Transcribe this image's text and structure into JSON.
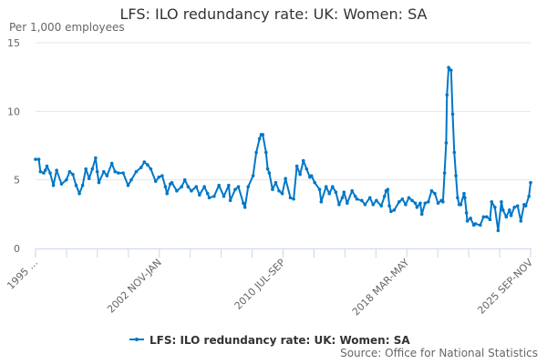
{
  "chart_data": {
    "type": "line",
    "title": "LFS: ILO redundancy rate: UK: Women: SA",
    "ylabel": "Per 1,000 employees",
    "source": "Source: Office for National Statistics",
    "ylim": [
      0,
      15
    ],
    "yticks": [
      0,
      5,
      10,
      15
    ],
    "xlim": [
      1995.3,
      2025.8
    ],
    "xtick_labels": [
      "1995 ...",
      "2002 NOV-JAN",
      "2010 JUL-SEP",
      "2018 MAR-MAY",
      "2025 SEP-NOV"
    ],
    "grid": true,
    "legend_position": "bottom",
    "color": "#0077c8",
    "series": [
      {
        "name": "LFS: ILO redundancy rate: UK: Women: SA",
        "points": [
          [
            1995.3,
            6.5
          ],
          [
            1995.5,
            6.5
          ],
          [
            1995.6,
            5.6
          ],
          [
            1995.8,
            5.5
          ],
          [
            1995.9,
            5.7
          ],
          [
            1996.0,
            6.0
          ],
          [
            1996.2,
            5.5
          ],
          [
            1996.4,
            4.6
          ],
          [
            1996.6,
            5.7
          ],
          [
            1996.9,
            4.7
          ],
          [
            1997.2,
            5.0
          ],
          [
            1997.4,
            5.6
          ],
          [
            1997.6,
            5.4
          ],
          [
            1997.8,
            4.6
          ],
          [
            1998.0,
            4.0
          ],
          [
            1998.2,
            4.6
          ],
          [
            1998.4,
            5.8
          ],
          [
            1998.6,
            5.1
          ],
          [
            1998.8,
            5.8
          ],
          [
            1999.0,
            6.6
          ],
          [
            1999.1,
            5.6
          ],
          [
            1999.2,
            4.8
          ],
          [
            1999.5,
            5.6
          ],
          [
            1999.7,
            5.3
          ],
          [
            2000.0,
            6.2
          ],
          [
            2000.2,
            5.6
          ],
          [
            2000.4,
            5.5
          ],
          [
            2000.7,
            5.5
          ],
          [
            2001.0,
            4.6
          ],
          [
            2001.2,
            5.0
          ],
          [
            2001.5,
            5.6
          ],
          [
            2001.8,
            5.9
          ],
          [
            2002.0,
            6.3
          ],
          [
            2002.2,
            6.1
          ],
          [
            2002.4,
            5.8
          ],
          [
            2002.7,
            4.9
          ],
          [
            2002.9,
            5.2
          ],
          [
            2003.1,
            5.3
          ],
          [
            2003.3,
            4.5
          ],
          [
            2003.4,
            4.0
          ],
          [
            2003.6,
            4.7
          ],
          [
            2003.7,
            4.8
          ],
          [
            2004.0,
            4.2
          ],
          [
            2004.3,
            4.5
          ],
          [
            2004.5,
            5.0
          ],
          [
            2004.7,
            4.5
          ],
          [
            2004.9,
            4.2
          ],
          [
            2005.2,
            4.5
          ],
          [
            2005.4,
            3.9
          ],
          [
            2005.7,
            4.5
          ],
          [
            2005.9,
            4.0
          ],
          [
            2006.0,
            3.7
          ],
          [
            2006.3,
            3.8
          ],
          [
            2006.6,
            4.6
          ],
          [
            2006.9,
            3.8
          ],
          [
            2007.2,
            4.6
          ],
          [
            2007.3,
            3.5
          ],
          [
            2007.6,
            4.3
          ],
          [
            2007.8,
            4.5
          ],
          [
            2008.1,
            3.3
          ],
          [
            2008.2,
            3.0
          ],
          [
            2008.4,
            4.5
          ],
          [
            2008.7,
            5.3
          ],
          [
            2008.9,
            7.0
          ],
          [
            2009.1,
            8.0
          ],
          [
            2009.2,
            8.3
          ],
          [
            2009.3,
            8.3
          ],
          [
            2009.5,
            7.0
          ],
          [
            2009.6,
            5.8
          ],
          [
            2009.7,
            5.5
          ],
          [
            2009.9,
            4.3
          ],
          [
            2010.1,
            4.8
          ],
          [
            2010.3,
            4.2
          ],
          [
            2010.5,
            4.0
          ],
          [
            2010.7,
            5.1
          ],
          [
            2011.0,
            3.7
          ],
          [
            2011.2,
            3.6
          ],
          [
            2011.4,
            6.0
          ],
          [
            2011.6,
            5.4
          ],
          [
            2011.8,
            6.4
          ],
          [
            2012.0,
            5.8
          ],
          [
            2012.2,
            5.2
          ],
          [
            2012.3,
            5.3
          ],
          [
            2012.5,
            4.8
          ],
          [
            2012.8,
            4.3
          ],
          [
            2012.9,
            3.4
          ],
          [
            2013.2,
            4.5
          ],
          [
            2013.4,
            4.0
          ],
          [
            2013.6,
            4.5
          ],
          [
            2013.8,
            4.1
          ],
          [
            2014.0,
            3.2
          ],
          [
            2014.2,
            3.7
          ],
          [
            2014.3,
            4.1
          ],
          [
            2014.5,
            3.3
          ],
          [
            2014.8,
            4.2
          ],
          [
            2015.0,
            3.8
          ],
          [
            2015.1,
            3.6
          ],
          [
            2015.4,
            3.5
          ],
          [
            2015.6,
            3.2
          ],
          [
            2015.9,
            3.7
          ],
          [
            2016.1,
            3.2
          ],
          [
            2016.3,
            3.5
          ],
          [
            2016.6,
            3.1
          ],
          [
            2016.8,
            3.8
          ],
          [
            2016.9,
            4.2
          ],
          [
            2017.0,
            4.3
          ],
          [
            2017.1,
            3.1
          ],
          [
            2017.2,
            2.7
          ],
          [
            2017.4,
            2.8
          ],
          [
            2017.7,
            3.4
          ],
          [
            2017.9,
            3.6
          ],
          [
            2018.1,
            3.2
          ],
          [
            2018.3,
            3.7
          ],
          [
            2018.5,
            3.5
          ],
          [
            2018.7,
            3.3
          ],
          [
            2018.8,
            3.0
          ],
          [
            2019.0,
            3.3
          ],
          [
            2019.1,
            2.5
          ],
          [
            2019.3,
            3.3
          ],
          [
            2019.5,
            3.4
          ],
          [
            2019.7,
            4.2
          ],
          [
            2019.9,
            4.0
          ],
          [
            2020.1,
            3.3
          ],
          [
            2020.3,
            3.5
          ],
          [
            2020.4,
            3.4
          ],
          [
            2020.5,
            5.5
          ],
          [
            2020.6,
            7.7
          ],
          [
            2020.65,
            11.2
          ],
          [
            2020.75,
            13.2
          ],
          [
            2020.9,
            13.0
          ],
          [
            2021.0,
            9.8
          ],
          [
            2021.1,
            7.0
          ],
          [
            2021.2,
            5.3
          ],
          [
            2021.3,
            3.7
          ],
          [
            2021.4,
            3.2
          ],
          [
            2021.5,
            3.2
          ],
          [
            2021.7,
            4.0
          ],
          [
            2021.75,
            3.7
          ],
          [
            2021.85,
            2.6
          ],
          [
            2021.9,
            2.0
          ],
          [
            2022.1,
            2.2
          ],
          [
            2022.3,
            1.7
          ],
          [
            2022.4,
            1.8
          ],
          [
            2022.7,
            1.7
          ],
          [
            2022.9,
            2.3
          ],
          [
            2023.1,
            2.3
          ],
          [
            2023.3,
            2.1
          ],
          [
            2023.4,
            3.4
          ],
          [
            2023.6,
            3.0
          ],
          [
            2023.8,
            1.3
          ],
          [
            2024.0,
            3.4
          ],
          [
            2024.1,
            2.8
          ],
          [
            2024.3,
            2.3
          ],
          [
            2024.5,
            2.8
          ],
          [
            2024.6,
            2.4
          ],
          [
            2024.8,
            3.0
          ],
          [
            2025.0,
            3.1
          ],
          [
            2025.2,
            2.0
          ],
          [
            2025.4,
            3.2
          ],
          [
            2025.5,
            3.1
          ],
          [
            2025.7,
            3.8
          ],
          [
            2025.8,
            4.8
          ]
        ]
      }
    ]
  }
}
